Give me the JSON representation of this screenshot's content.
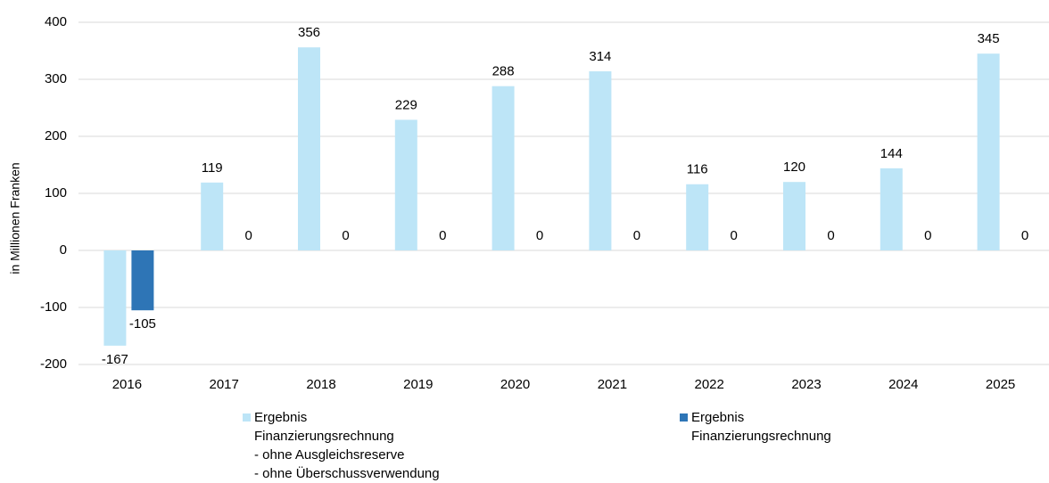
{
  "chart_data": {
    "type": "bar",
    "y_label": "in Millionen Franken",
    "categories": [
      "2016",
      "2017",
      "2018",
      "2019",
      "2020",
      "2021",
      "2022",
      "2023",
      "2024",
      "2025"
    ],
    "series": [
      {
        "name": "Ergebnis\nFinanzierungsrechnung\n- ohne Ausgleichsreserve\n- ohne Überschussverwendung",
        "color": "#bde5f7",
        "values": [
          -167,
          119,
          356,
          229,
          288,
          314,
          116,
          120,
          144,
          345
        ]
      },
      {
        "name": "Ergebnis\nFinanzierungsrechnung",
        "color": "#2e75b6",
        "values": [
          -105,
          0,
          0,
          0,
          0,
          0,
          0,
          0,
          0,
          0
        ]
      }
    ],
    "ylim": [
      -200,
      400
    ],
    "yticks": [
      -200,
      -100,
      0,
      100,
      200,
      300,
      400
    ],
    "grid": true
  }
}
